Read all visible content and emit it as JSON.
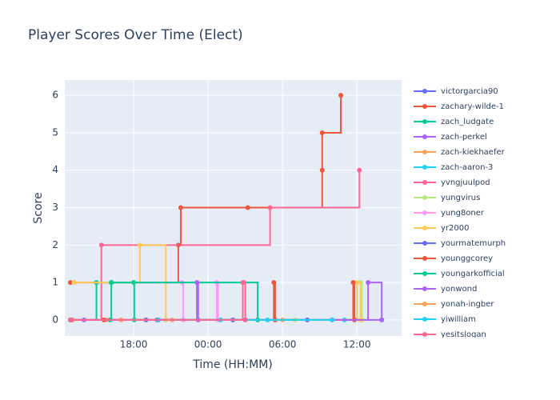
{
  "chart_data": {
    "type": "step-line",
    "title": "Player Scores Over Time (Elect)",
    "x_label": "Time (HH:MM)",
    "y_label": "Score",
    "xlim": [
      12.45,
      39.6
    ],
    "xticks": [
      {
        "value": 18,
        "label": "18:00"
      },
      {
        "value": 24,
        "label": "00:00"
      },
      {
        "value": 30,
        "label": "06:00"
      },
      {
        "value": 36,
        "label": "12:00"
      }
    ],
    "ylim": [
      -0.43,
      6.41
    ],
    "yticks": [
      0,
      1,
      2,
      3,
      4,
      5,
      6
    ],
    "grid": true,
    "series": [
      {
        "name": "victorgarcia90",
        "color": "#636efa",
        "x": [
          12.9,
          19.0,
          20.0
        ],
        "values": [
          0,
          0,
          0
        ]
      },
      {
        "name": "zachary-wilde-1",
        "color": "#EF553B",
        "x": [
          12.9,
          21.6,
          21.8,
          27.2,
          33.2,
          33.2,
          34.7
        ],
        "values": [
          1,
          2,
          3,
          3,
          4,
          5,
          6
        ]
      },
      {
        "name": "zach_ludgate",
        "color": "#00cc96",
        "x": [
          12.9,
          15.0,
          16.2,
          18.0,
          18.05,
          27.0
        ],
        "values": [
          0,
          1,
          1,
          1,
          0,
          0
        ]
      },
      {
        "name": "zach-perkel",
        "color": "#ab63fa",
        "x": [
          14.0,
          38.0
        ],
        "values": [
          0,
          0
        ]
      },
      {
        "name": "zach-kiekhaefer",
        "color": "#FFA15A",
        "x": [
          13.1,
          15.8,
          21.1
        ],
        "values": [
          0,
          0,
          0
        ]
      },
      {
        "name": "zach-aaron-3",
        "color": "#19d3f3",
        "x": [
          13.0,
          28.8,
          35.0
        ],
        "values": [
          0,
          0,
          0
        ]
      },
      {
        "name": "yvngjuulpod",
        "color": "#FF6692",
        "x": [
          12.9,
          15.4,
          29.0,
          36.2
        ],
        "values": [
          0,
          2,
          3,
          4
        ]
      },
      {
        "name": "yungvirus",
        "color": "#B6E880",
        "x": [
          13.1,
          31.0,
          36.3,
          36.4
        ],
        "values": [
          0,
          0,
          1,
          0
        ]
      },
      {
        "name": "yung8oner",
        "color": "#FF97FF",
        "x": [
          13.2,
          21.9,
          22.0,
          24.7,
          24.8
        ],
        "values": [
          1,
          1,
          0,
          1,
          0
        ]
      },
      {
        "name": "yr2000",
        "color": "#FECB52",
        "x": [
          13.2,
          18.5,
          20.6,
          36.0,
          36.3
        ],
        "values": [
          1,
          2,
          0,
          1,
          0
        ]
      },
      {
        "name": "yourmatemurph",
        "color": "#636efa",
        "x": [
          19.9,
          26.0,
          32.0
        ],
        "values": [
          0,
          0,
          0
        ]
      },
      {
        "name": "younggcorey",
        "color": "#EF553B",
        "x": [
          15.6,
          29.3,
          29.4,
          35.7,
          35.8
        ],
        "values": [
          0,
          1,
          0,
          1,
          0
        ]
      },
      {
        "name": "youngarkofficial",
        "color": "#00cc96",
        "x": [
          16.1,
          16.2,
          28.0
        ],
        "values": [
          0,
          1,
          0
        ]
      },
      {
        "name": "yonwond",
        "color": "#ab63fa",
        "x": [
          13.0,
          23.1,
          23.2,
          36.9,
          38.0
        ],
        "values": [
          0,
          1,
          0,
          1,
          0
        ]
      },
      {
        "name": "yonah-ingber",
        "color": "#FFA15A",
        "x": [
          17.0,
          30.0,
          34.0
        ],
        "values": [
          0,
          0,
          0
        ]
      },
      {
        "name": "yiwilliam",
        "color": "#19d3f3",
        "x": [
          20.0,
          25.0,
          34.0
        ],
        "values": [
          0,
          0,
          0
        ]
      },
      {
        "name": "yesitslogan",
        "color": "#FF6692",
        "x": [
          13.0,
          26.8,
          26.9,
          27.0
        ],
        "values": [
          0,
          1,
          1,
          0
        ]
      }
    ]
  }
}
